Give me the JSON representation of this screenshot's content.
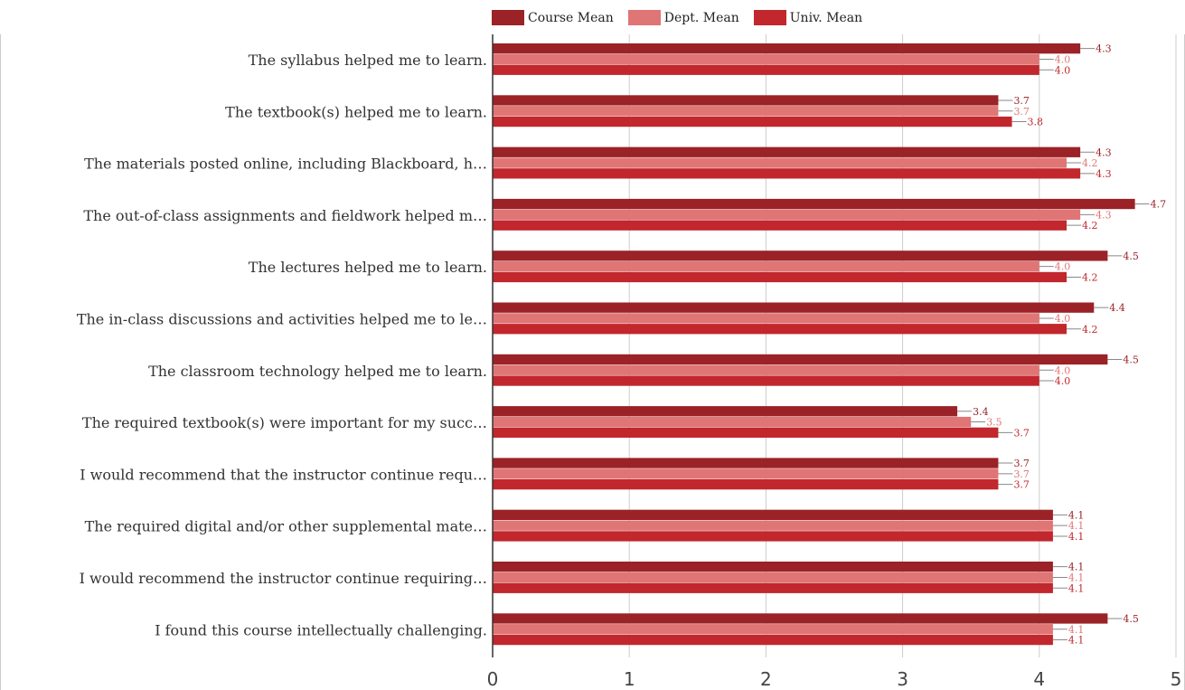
{
  "chart_data": {
    "type": "bar",
    "orientation": "horizontal",
    "categories": [
      "The syllabus helped me to learn.",
      "The textbook(s) helped me to learn.",
      "The materials posted online, including Blackboard, h…",
      "The out-of-class assignments and fieldwork helped m…",
      "The lectures helped me to learn.",
      "The in-class discussions and activities helped me to le…",
      "The classroom technology helped me to learn.",
      "The required textbook(s) were important for my succ…",
      "I would recommend that the instructor continue requ…",
      "The required digital and/or other supplemental mate…",
      "I would recommend the instructor continue requiring…",
      "I found this course intellectually challenging."
    ],
    "series": [
      {
        "name": "Course Mean",
        "color": "#9b2226",
        "label_color": "#9b2226",
        "values": [
          4.3,
          3.7,
          4.3,
          4.7,
          4.5,
          4.4,
          4.5,
          3.4,
          3.7,
          4.1,
          4.1,
          4.5
        ]
      },
      {
        "name": "Dept. Mean",
        "color": "#e07575",
        "label_color": "#e07575",
        "values": [
          4.0,
          3.7,
          4.2,
          4.3,
          4.0,
          4.0,
          4.0,
          3.5,
          3.7,
          4.1,
          4.1,
          4.1
        ]
      },
      {
        "name": "Univ. Mean",
        "color": "#c1272d",
        "label_color": "#c1272d",
        "values": [
          4.0,
          3.8,
          4.3,
          4.2,
          4.2,
          4.2,
          4.0,
          3.7,
          3.7,
          4.1,
          4.1,
          4.1
        ]
      }
    ],
    "xlim": [
      0,
      5
    ],
    "xticks": [
      "0",
      "1",
      "2",
      "3",
      "4",
      "5"
    ],
    "grid": true,
    "legend_position": "top"
  }
}
